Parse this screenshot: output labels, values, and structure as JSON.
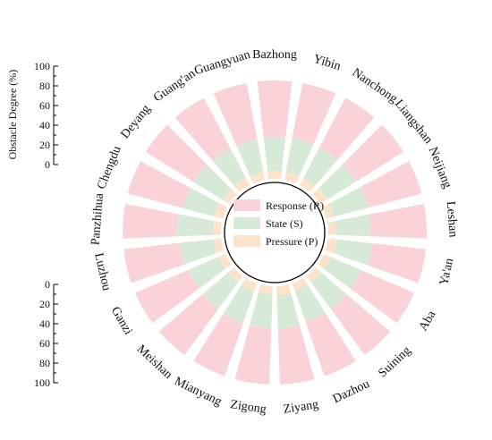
{
  "chart_data": {
    "type": "bar",
    "layout": "polar-stacked",
    "title": "",
    "ylabel": "Obstacle Degree (%)",
    "ylim": [
      0,
      100
    ],
    "yticks": [
      "0",
      "20",
      "40",
      "60",
      "80",
      "100"
    ],
    "categories": [
      "Bazhong",
      "Yibin",
      "Nanchong",
      "Liangshan",
      "Neijiang",
      "Leshan",
      "Ya'an",
      "Aba",
      "Suining",
      "Dazhou",
      "Ziyang",
      "Zigong",
      "Mianyang",
      "Meishan",
      "Ganzi",
      "Luzhou",
      "Panzhihua",
      "Chengdu",
      "Deyang",
      "Guang'an",
      "Guangyuan"
    ],
    "series": [
      {
        "name": "Pressure (P)",
        "color": "#fde3c9",
        "values": [
          8,
          8,
          8,
          9,
          8,
          8,
          9,
          8,
          8,
          8,
          9,
          8,
          9,
          8,
          8,
          8,
          8,
          9,
          8,
          8,
          8
        ]
      },
      {
        "name": "State (S)",
        "color": "#d7ead7",
        "values": [
          35,
          35,
          35,
          34,
          36,
          35,
          36,
          33,
          34,
          33,
          34,
          35,
          34,
          34,
          33,
          35,
          37,
          33,
          35,
          34,
          34
        ]
      },
      {
        "name": "Response (R)",
        "color": "#f9d3d7",
        "values": [
          57,
          57,
          57,
          57,
          56,
          57,
          55,
          59,
          58,
          59,
          57,
          57,
          57,
          58,
          59,
          57,
          55,
          58,
          57,
          58,
          58
        ]
      }
    ],
    "legend": {
      "position": "center",
      "entries": [
        "Response (R)",
        "State (S)",
        "Pressure (P)"
      ]
    }
  }
}
